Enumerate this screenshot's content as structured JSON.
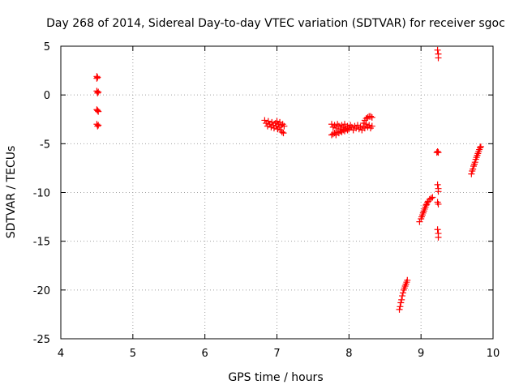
{
  "chart_data": {
    "type": "scatter",
    "title": "Day 268 of 2014, Sidereal Day-to-day VTEC variation (SDTVAR) for receiver sgoc",
    "xlabel": "GPS time / hours",
    "ylabel": "SDTVAR / TECUs",
    "xlim": [
      4,
      10
    ],
    "ylim": [
      -25,
      5
    ],
    "xticks": [
      4,
      5,
      6,
      7,
      8,
      9,
      10
    ],
    "yticks": [
      5,
      0,
      -5,
      -10,
      -15,
      -20,
      -25
    ],
    "grid": true,
    "marker": "plus",
    "color": "#ff0000",
    "series": [
      {
        "name": "SDTVAR",
        "points": [
          [
            4.5,
            1.9
          ],
          [
            4.5,
            1.7
          ],
          [
            4.51,
            1.8
          ],
          [
            4.5,
            0.4
          ],
          [
            4.51,
            0.2
          ],
          [
            4.52,
            0.3
          ],
          [
            4.5,
            -1.5
          ],
          [
            4.51,
            -1.6
          ],
          [
            4.52,
            -1.7
          ],
          [
            4.5,
            -3.0
          ],
          [
            4.51,
            -3.2
          ],
          [
            4.52,
            -3.1
          ],
          [
            6.83,
            -2.6
          ],
          [
            6.85,
            -2.9
          ],
          [
            6.87,
            -3.2
          ],
          [
            6.88,
            -2.7
          ],
          [
            6.9,
            -3.0
          ],
          [
            6.92,
            -3.3
          ],
          [
            6.93,
            -2.8
          ],
          [
            6.95,
            -3.1
          ],
          [
            6.96,
            -3.4
          ],
          [
            6.98,
            -2.9
          ],
          [
            6.99,
            -3.2
          ],
          [
            7.0,
            -2.7
          ],
          [
            7.01,
            -3.5
          ],
          [
            7.02,
            -3.0
          ],
          [
            7.03,
            -3.3
          ],
          [
            7.04,
            -2.8
          ],
          [
            7.05,
            -3.6
          ],
          [
            7.06,
            -3.1
          ],
          [
            7.07,
            -3.8
          ],
          [
            7.08,
            -3.0
          ],
          [
            7.09,
            -3.9
          ],
          [
            7.1,
            -3.2
          ],
          [
            7.76,
            -3.0
          ],
          [
            7.78,
            -3.3
          ],
          [
            7.8,
            -3.1
          ],
          [
            7.82,
            -3.4
          ],
          [
            7.84,
            -3.0
          ],
          [
            7.86,
            -3.2
          ],
          [
            7.88,
            -3.5
          ],
          [
            7.9,
            -3.1
          ],
          [
            7.92,
            -3.3
          ],
          [
            7.94,
            -3.0
          ],
          [
            7.96,
            -3.4
          ],
          [
            7.98,
            -3.2
          ],
          [
            8.0,
            -3.5
          ],
          [
            8.02,
            -3.1
          ],
          [
            8.04,
            -3.3
          ],
          [
            8.06,
            -3.6
          ],
          [
            8.08,
            -3.2
          ],
          [
            8.1,
            -3.4
          ],
          [
            8.12,
            -3.1
          ],
          [
            8.14,
            -3.5
          ],
          [
            8.16,
            -3.3
          ],
          [
            8.18,
            -3.6
          ],
          [
            8.2,
            -3.2
          ],
          [
            8.22,
            -3.4
          ],
          [
            8.24,
            -3.0
          ],
          [
            8.26,
            -3.3
          ],
          [
            8.28,
            -3.1
          ],
          [
            8.3,
            -3.4
          ],
          [
            8.32,
            -3.2
          ],
          [
            7.76,
            -4.1
          ],
          [
            7.78,
            -4.0
          ],
          [
            7.8,
            -3.9
          ],
          [
            7.82,
            -4.1
          ],
          [
            7.84,
            -3.8
          ],
          [
            7.86,
            -3.9
          ],
          [
            7.88,
            -3.7
          ],
          [
            7.9,
            -3.8
          ],
          [
            7.92,
            -3.6
          ],
          [
            7.94,
            -3.7
          ],
          [
            7.96,
            -3.5
          ],
          [
            7.98,
            -3.6
          ],
          [
            8.0,
            -3.4
          ],
          [
            8.2,
            -2.9
          ],
          [
            8.22,
            -2.6
          ],
          [
            8.24,
            -2.4
          ],
          [
            8.26,
            -2.3
          ],
          [
            8.28,
            -2.2
          ],
          [
            8.3,
            -2.2
          ],
          [
            8.32,
            -2.3
          ],
          [
            8.7,
            -22.0
          ],
          [
            8.71,
            -21.7
          ],
          [
            8.72,
            -21.3
          ],
          [
            8.73,
            -21.0
          ],
          [
            8.74,
            -20.6
          ],
          [
            8.75,
            -20.3
          ],
          [
            8.76,
            -20.0
          ],
          [
            8.77,
            -19.8
          ],
          [
            8.78,
            -19.6
          ],
          [
            8.79,
            -19.4
          ],
          [
            8.8,
            -19.2
          ],
          [
            8.81,
            -19.0
          ],
          [
            8.98,
            -13.0
          ],
          [
            9.0,
            -12.7
          ],
          [
            9.01,
            -12.5
          ],
          [
            9.02,
            -12.3
          ],
          [
            9.03,
            -12.1
          ],
          [
            9.04,
            -11.9
          ],
          [
            9.05,
            -11.7
          ],
          [
            9.06,
            -11.5
          ],
          [
            9.07,
            -11.3
          ],
          [
            9.08,
            -11.2
          ],
          [
            9.09,
            -11.0
          ],
          [
            9.1,
            -10.9
          ],
          [
            9.12,
            -10.7
          ],
          [
            9.14,
            -10.6
          ],
          [
            9.16,
            -10.5
          ],
          [
            9.23,
            4.6
          ],
          [
            9.24,
            4.2
          ],
          [
            9.24,
            3.8
          ],
          [
            9.22,
            -5.9
          ],
          [
            9.23,
            -5.8
          ],
          [
            9.24,
            -5.9
          ],
          [
            9.23,
            -9.2
          ],
          [
            9.24,
            -9.6
          ],
          [
            9.24,
            -9.9
          ],
          [
            9.23,
            -11.0
          ],
          [
            9.24,
            -11.2
          ],
          [
            9.23,
            -13.8
          ],
          [
            9.24,
            -14.2
          ],
          [
            9.24,
            -14.6
          ],
          [
            9.7,
            -8.1
          ],
          [
            9.71,
            -7.8
          ],
          [
            9.72,
            -7.6
          ],
          [
            9.73,
            -7.3
          ],
          [
            9.74,
            -7.1
          ],
          [
            9.75,
            -6.9
          ],
          [
            9.76,
            -6.6
          ],
          [
            9.77,
            -6.4
          ],
          [
            9.78,
            -6.2
          ],
          [
            9.79,
            -6.0
          ],
          [
            9.8,
            -5.8
          ],
          [
            9.81,
            -5.6
          ],
          [
            9.82,
            -5.4
          ],
          [
            9.83,
            -5.3
          ]
        ]
      }
    ]
  }
}
